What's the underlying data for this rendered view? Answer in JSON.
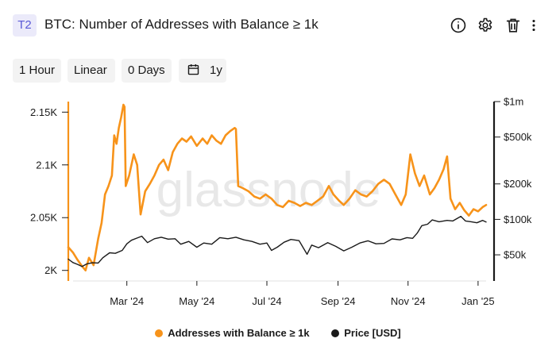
{
  "header": {
    "tier_badge": "T2",
    "title": "BTC: Number of Addresses with Balance ≥ 1k",
    "icons": [
      "info-icon",
      "gear-icon",
      "trash-icon",
      "more-vertical-icon"
    ]
  },
  "toolbar": {
    "resolution": "1 Hour",
    "scale": "Linear",
    "sma": "0 Days",
    "range_icon": "calendar-icon",
    "range": "1y"
  },
  "watermark": "glassnode",
  "colors": {
    "addresses": "#f7931a",
    "price": "#1a1a1a",
    "grid": "#e6e6e6",
    "badge_bg": "#ebeafa",
    "badge_text": "#5a5ad6"
  },
  "chart_data": {
    "type": "line",
    "title": "BTC: Number of Addresses with Balance ≥ 1k",
    "x_ticks": [
      "Mar '24",
      "May '24",
      "Jul '24",
      "Sep '24",
      "Nov '24",
      "Jan '25"
    ],
    "x_range": [
      "2024-01-10",
      "2025-01-08"
    ],
    "y_left": {
      "ticks": [
        "2K",
        "2.05K",
        "2.1K",
        "2.15K"
      ],
      "ylim": [
        1990,
        2160
      ],
      "scale": "linear"
    },
    "y_right": {
      "ticks": [
        "$50k",
        "$100k",
        "$200k",
        "$500k",
        "$1m"
      ],
      "ylim": [
        30000,
        1000000
      ],
      "scale": "log"
    },
    "grid": false,
    "legend_position": "bottom-center",
    "series": [
      {
        "name": "Addresses with Balance ≥ 1k",
        "axis": "left",
        "color": "#f7931a",
        "points": [
          [
            "2024-01-10",
            2022
          ],
          [
            "2024-01-14",
            2017
          ],
          [
            "2024-01-18",
            2010
          ],
          [
            "2024-01-22",
            2004
          ],
          [
            "2024-01-25",
            2000
          ],
          [
            "2024-01-28",
            2012
          ],
          [
            "2024-02-01",
            2005
          ],
          [
            "2024-02-05",
            2030
          ],
          [
            "2024-02-08",
            2045
          ],
          [
            "2024-02-11",
            2072
          ],
          [
            "2024-02-14",
            2080
          ],
          [
            "2024-02-17",
            2090
          ],
          [
            "2024-02-19",
            2128
          ],
          [
            "2024-02-21",
            2120
          ],
          [
            "2024-02-23",
            2135
          ],
          [
            "2024-02-25",
            2145
          ],
          [
            "2024-02-27",
            2157
          ],
          [
            "2024-02-28",
            2155
          ],
          [
            "2024-02-29",
            2080
          ],
          [
            "2024-03-03",
            2090
          ],
          [
            "2024-03-07",
            2110
          ],
          [
            "2024-03-10",
            2100
          ],
          [
            "2024-03-13",
            2053
          ],
          [
            "2024-03-17",
            2075
          ],
          [
            "2024-03-21",
            2082
          ],
          [
            "2024-03-25",
            2090
          ],
          [
            "2024-03-29",
            2100
          ],
          [
            "2024-04-02",
            2105
          ],
          [
            "2024-04-06",
            2095
          ],
          [
            "2024-04-10",
            2112
          ],
          [
            "2024-04-14",
            2120
          ],
          [
            "2024-04-18",
            2125
          ],
          [
            "2024-04-22",
            2122
          ],
          [
            "2024-04-26",
            2127
          ],
          [
            "2024-05-01",
            2118
          ],
          [
            "2024-05-06",
            2125
          ],
          [
            "2024-05-10",
            2120
          ],
          [
            "2024-05-14",
            2128
          ],
          [
            "2024-05-18",
            2123
          ],
          [
            "2024-05-22",
            2120
          ],
          [
            "2024-05-26",
            2128
          ],
          [
            "2024-05-30",
            2132
          ],
          [
            "2024-06-03",
            2135
          ],
          [
            "2024-06-04",
            2134
          ],
          [
            "2024-06-06",
            2080
          ],
          [
            "2024-06-10",
            2078
          ],
          [
            "2024-06-15",
            2075
          ],
          [
            "2024-06-20",
            2070
          ],
          [
            "2024-06-25",
            2068
          ],
          [
            "2024-06-30",
            2072
          ],
          [
            "2024-07-05",
            2068
          ],
          [
            "2024-07-10",
            2062
          ],
          [
            "2024-07-15",
            2060
          ],
          [
            "2024-07-20",
            2066
          ],
          [
            "2024-07-25",
            2064
          ],
          [
            "2024-07-30",
            2061
          ],
          [
            "2024-08-04",
            2064
          ],
          [
            "2024-08-09",
            2062
          ],
          [
            "2024-08-14",
            2066
          ],
          [
            "2024-08-19",
            2070
          ],
          [
            "2024-08-24",
            2080
          ],
          [
            "2024-08-28",
            2072
          ],
          [
            "2024-09-02",
            2066
          ],
          [
            "2024-09-06",
            2062
          ],
          [
            "2024-09-11",
            2068
          ],
          [
            "2024-09-16",
            2076
          ],
          [
            "2024-09-21",
            2072
          ],
          [
            "2024-09-26",
            2070
          ],
          [
            "2024-10-01",
            2075
          ],
          [
            "2024-10-06",
            2082
          ],
          [
            "2024-10-11",
            2086
          ],
          [
            "2024-10-16",
            2082
          ],
          [
            "2024-10-21",
            2072
          ],
          [
            "2024-10-26",
            2062
          ],
          [
            "2024-10-30",
            2072
          ],
          [
            "2024-11-03",
            2110
          ],
          [
            "2024-11-07",
            2092
          ],
          [
            "2024-11-11",
            2080
          ],
          [
            "2024-11-15",
            2090
          ],
          [
            "2024-11-20",
            2072
          ],
          [
            "2024-11-24",
            2078
          ],
          [
            "2024-11-28",
            2086
          ],
          [
            "2024-12-02",
            2096
          ],
          [
            "2024-12-05",
            2108
          ],
          [
            "2024-12-08",
            2068
          ],
          [
            "2024-12-12",
            2058
          ],
          [
            "2024-12-16",
            2064
          ],
          [
            "2024-12-20",
            2057
          ],
          [
            "2024-12-24",
            2052
          ],
          [
            "2024-12-28",
            2058
          ],
          [
            "2025-01-01",
            2056
          ],
          [
            "2025-01-05",
            2060
          ],
          [
            "2025-01-08",
            2062
          ]
        ]
      },
      {
        "name": "Price [USD]",
        "axis": "right",
        "color": "#1a1a1a",
        "points": [
          [
            "2024-01-10",
            46000
          ],
          [
            "2024-01-14",
            43000
          ],
          [
            "2024-01-18",
            41500
          ],
          [
            "2024-01-22",
            39800
          ],
          [
            "2024-01-26",
            41800
          ],
          [
            "2024-01-31",
            42800
          ],
          [
            "2024-02-05",
            42600
          ],
          [
            "2024-02-09",
            47200
          ],
          [
            "2024-02-15",
            52000
          ],
          [
            "2024-02-20",
            51500
          ],
          [
            "2024-02-26",
            54500
          ],
          [
            "2024-03-01",
            62000
          ],
          [
            "2024-03-05",
            66500
          ],
          [
            "2024-03-10",
            69500
          ],
          [
            "2024-03-14",
            72000
          ],
          [
            "2024-03-19",
            63500
          ],
          [
            "2024-03-25",
            68500
          ],
          [
            "2024-03-31",
            70500
          ],
          [
            "2024-04-06",
            68000
          ],
          [
            "2024-04-12",
            68500
          ],
          [
            "2024-04-17",
            61500
          ],
          [
            "2024-04-24",
            65000
          ],
          [
            "2024-05-01",
            58000
          ],
          [
            "2024-05-07",
            63000
          ],
          [
            "2024-05-14",
            61500
          ],
          [
            "2024-05-21",
            70000
          ],
          [
            "2024-05-28",
            68500
          ],
          [
            "2024-06-04",
            70500
          ],
          [
            "2024-06-11",
            67000
          ],
          [
            "2024-06-18",
            65000
          ],
          [
            "2024-06-25",
            61500
          ],
          [
            "2024-07-01",
            63000
          ],
          [
            "2024-07-05",
            54500
          ],
          [
            "2024-07-10",
            58000
          ],
          [
            "2024-07-16",
            64000
          ],
          [
            "2024-07-22",
            67500
          ],
          [
            "2024-07-29",
            66000
          ],
          [
            "2024-08-05",
            50500
          ],
          [
            "2024-08-09",
            60500
          ],
          [
            "2024-08-15",
            57500
          ],
          [
            "2024-08-23",
            63500
          ],
          [
            "2024-08-30",
            59000
          ],
          [
            "2024-09-06",
            54000
          ],
          [
            "2024-09-13",
            58000
          ],
          [
            "2024-09-20",
            63000
          ],
          [
            "2024-09-27",
            65800
          ],
          [
            "2024-10-04",
            62000
          ],
          [
            "2024-10-11",
            62500
          ],
          [
            "2024-10-18",
            68300
          ],
          [
            "2024-10-25",
            67000
          ],
          [
            "2024-10-31",
            70000
          ],
          [
            "2024-11-05",
            69000
          ],
          [
            "2024-11-09",
            76500
          ],
          [
            "2024-11-13",
            88500
          ],
          [
            "2024-11-18",
            91000
          ],
          [
            "2024-11-22",
            99000
          ],
          [
            "2024-11-28",
            95500
          ],
          [
            "2024-12-05",
            98000
          ],
          [
            "2024-12-10",
            97000
          ],
          [
            "2024-12-17",
            106000
          ],
          [
            "2024-12-21",
            97000
          ],
          [
            "2024-12-26",
            95500
          ],
          [
            "2024-12-31",
            93500
          ],
          [
            "2025-01-05",
            98000
          ],
          [
            "2025-01-08",
            95000
          ]
        ]
      }
    ]
  },
  "legend": {
    "items": [
      {
        "label": "Addresses with Balance ≥ 1k",
        "color": "#f7931a"
      },
      {
        "label": "Price [USD]",
        "color": "#1a1a1a"
      }
    ]
  }
}
